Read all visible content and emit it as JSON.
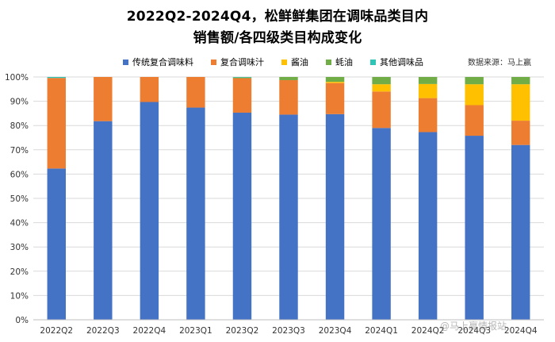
{
  "header": {
    "title_line1": "2022Q2-2024Q4，松鲜鲜集团在调味品类目内",
    "title_line2": "销售额/各四级类目构成变化",
    "source": "数据来源：马上赢",
    "watermark": "@马上赢情报站"
  },
  "chart_data": {
    "type": "bar",
    "stacked": true,
    "categories": [
      "2022Q2",
      "2022Q3",
      "2022Q4",
      "2023Q1",
      "2023Q2",
      "2023Q3",
      "2023Q4",
      "2024Q1",
      "2024Q2",
      "2024Q3",
      "2024Q4"
    ],
    "series": [
      {
        "name": "传统复合调味料",
        "color": "#4472C4",
        "values": [
          62.3,
          81.8,
          89.7,
          87.4,
          85.3,
          84.5,
          84.7,
          79.0,
          77.3,
          75.8,
          72.0
        ]
      },
      {
        "name": "复合调味汁",
        "color": "#ED7D31",
        "values": [
          37.3,
          18.2,
          10.3,
          12.6,
          14.2,
          14.2,
          12.8,
          15.0,
          14.0,
          12.6,
          10.0
        ]
      },
      {
        "name": "酱油",
        "color": "#FFC000",
        "values": [
          0,
          0,
          0,
          0,
          0,
          0,
          0.5,
          3.0,
          5.8,
          8.6,
          15.0
        ]
      },
      {
        "name": "蚝油",
        "color": "#70AD47",
        "values": [
          0,
          0,
          0,
          0,
          0.3,
          1.3,
          2.0,
          3.0,
          2.9,
          3.0,
          3.0
        ]
      },
      {
        "name": "其他调味品",
        "color": "#2EC4B6",
        "values": [
          0.4,
          0,
          0,
          0,
          0.2,
          0,
          0,
          0,
          0,
          0,
          0
        ]
      }
    ],
    "ylim": [
      0,
      100
    ],
    "yticks": [
      "0%",
      "10%",
      "20%",
      "30%",
      "40%",
      "50%",
      "60%",
      "70%",
      "80%",
      "90%",
      "100%"
    ],
    "grid": true,
    "legend_position": "top"
  }
}
